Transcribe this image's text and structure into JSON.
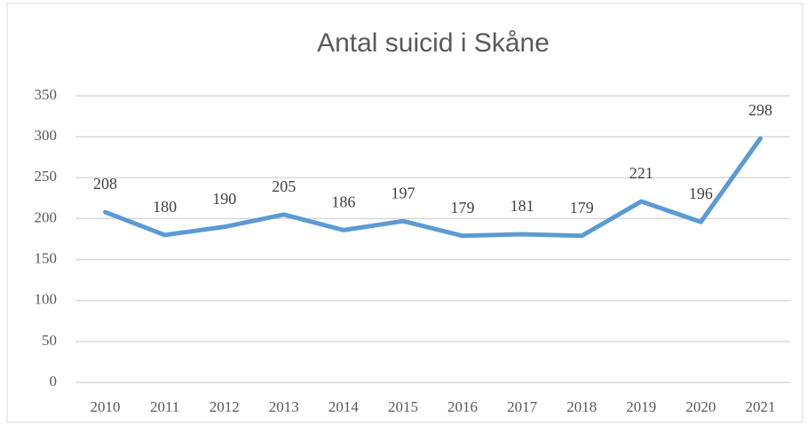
{
  "chart_data": {
    "type": "line",
    "title": "Antal suicid i Skåne",
    "categories": [
      "2010",
      "2011",
      "2012",
      "2013",
      "2014",
      "2015",
      "2016",
      "2017",
      "2018",
      "2019",
      "2020",
      "2021"
    ],
    "values": [
      208,
      180,
      190,
      205,
      186,
      197,
      179,
      181,
      179,
      221,
      196,
      298
    ],
    "color": "#5b9bd5",
    "ylim": [
      0,
      350
    ],
    "yticks": [
      0,
      50,
      100,
      150,
      200,
      250,
      300,
      350
    ],
    "grid": true
  }
}
